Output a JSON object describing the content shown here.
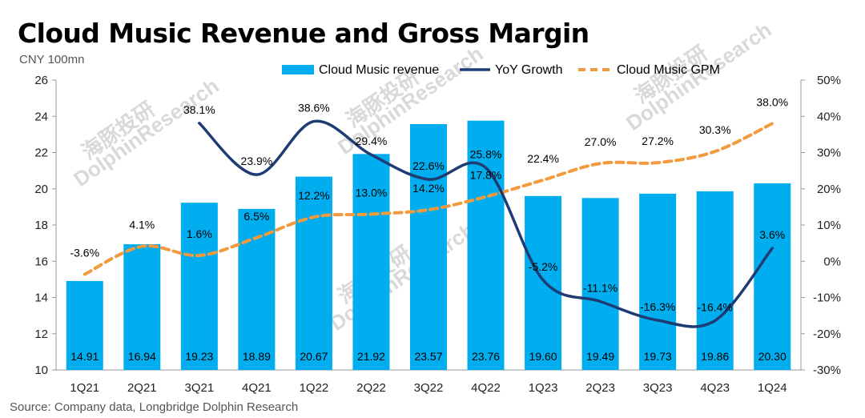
{
  "chart_data": {
    "type": "bar",
    "title": "Cloud Music Revenue and Gross Margin",
    "unit_label": "CNY 100mn",
    "source": "Source: Company data, Longbridge Dolphin Research",
    "watermark_cn": "海豚投研",
    "watermark_en": "DolphinResearch",
    "categories": [
      "1Q21",
      "2Q21",
      "3Q21",
      "4Q21",
      "1Q22",
      "2Q22",
      "3Q22",
      "4Q22",
      "1Q23",
      "2Q23",
      "3Q23",
      "4Q23",
      "1Q24"
    ],
    "y_left": {
      "min": 10,
      "max": 26,
      "ticks": [
        10,
        12,
        14,
        16,
        18,
        20,
        22,
        24,
        26
      ]
    },
    "y_right": {
      "min": -30,
      "max": 50,
      "ticks": [
        "-30%",
        "-20%",
        "-10%",
        "0%",
        "10%",
        "20%",
        "30%",
        "40%",
        "50%"
      ]
    },
    "legend_position": "top",
    "grid": false,
    "series": [
      {
        "name": "Cloud Music revenue",
        "kind": "bar",
        "axis": "left",
        "color": "#00aeef",
        "values": [
          14.91,
          16.94,
          19.23,
          18.89,
          20.67,
          21.92,
          23.57,
          23.76,
          19.6,
          19.49,
          19.73,
          19.86,
          20.3
        ],
        "labels": [
          "14.91",
          "16.94",
          "19.23",
          "18.89",
          "20.67",
          "21.92",
          "23.57",
          "23.76",
          "19.60",
          "19.49",
          "19.73",
          "19.86",
          "20.30"
        ]
      },
      {
        "name": "YoY Growth",
        "kind": "line",
        "axis": "right",
        "color": "#1f3b73",
        "values": [
          null,
          null,
          38.1,
          23.9,
          38.6,
          29.4,
          22.6,
          25.8,
          -5.2,
          -11.1,
          -16.3,
          -16.4,
          3.6
        ],
        "labels": [
          "",
          "",
          "38.1%",
          "23.9%",
          "38.6%",
          "29.4%",
          "22.6%",
          "25.8%",
          "-5.2%",
          "-11.1%",
          "-16.3%",
          "-16.4%",
          "3.6%"
        ]
      },
      {
        "name": "Cloud Music GPM",
        "kind": "line-dashed",
        "axis": "right",
        "color": "#f39a3e",
        "values": [
          -3.6,
          4.1,
          1.6,
          6.5,
          12.2,
          13.0,
          14.2,
          17.8,
          22.4,
          27.0,
          27.2,
          30.3,
          38.0
        ],
        "labels": [
          "-3.6%",
          "4.1%",
          "1.6%",
          "6.5%",
          "12.2%",
          "13.0%",
          "14.2%",
          "17.8%",
          "22.4%",
          "27.0%",
          "27.2%",
          "30.3%",
          "38.0%"
        ]
      }
    ]
  }
}
